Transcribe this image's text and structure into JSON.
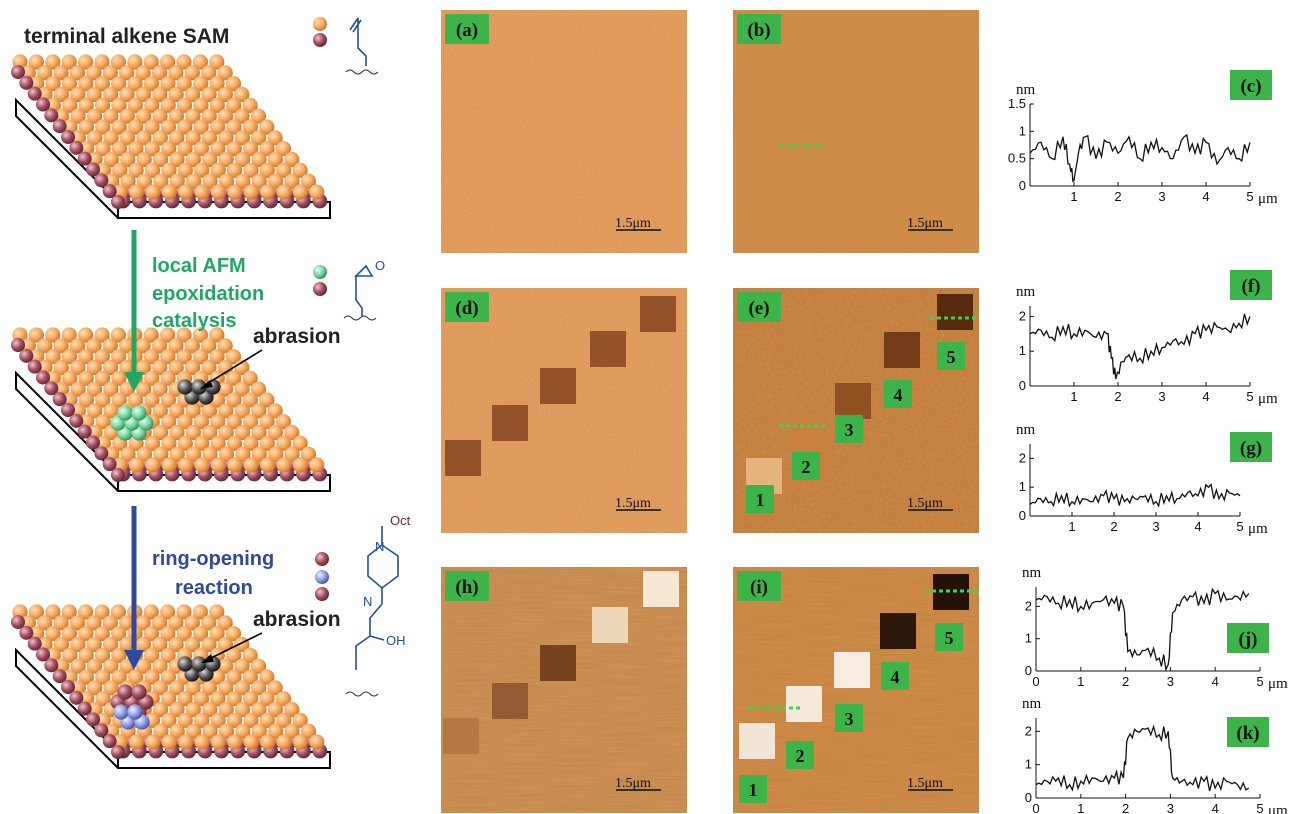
{
  "schematic": {
    "title": "terminal alkene SAM",
    "step1_label_lines": [
      "local AFM",
      "epoxidation",
      "catalysis"
    ],
    "step2_label_lines": [
      "ring-opening",
      "reaction"
    ],
    "abrasion_label": "abrasion",
    "chem_labels": {
      "oxygen": "O",
      "nitrogen": "N",
      "octyl": "Oct",
      "hydroxyl": "OH"
    },
    "colors": {
      "step1_arrow": "#1fa865",
      "step2_arrow": "#2e4aa0",
      "sphere_top": "#f7a95e",
      "sphere_edge": "#9c4a5a"
    }
  },
  "afm_images": {
    "scale_bar_text": "1.5μm",
    "panels": [
      {
        "label": "(a)"
      },
      {
        "label": "(b)"
      },
      {
        "label": "(d)"
      },
      {
        "label": "(e)",
        "markers": [
          "1",
          "2",
          "3",
          "4",
          "5"
        ]
      },
      {
        "label": "(h)"
      },
      {
        "label": "(i)",
        "markers": [
          "1",
          "2",
          "3",
          "4",
          "5"
        ]
      }
    ]
  },
  "chart_data": [
    {
      "type": "line",
      "panel": "(c)",
      "ylabel": "nm",
      "xlabel": "μm",
      "xlim": [
        0,
        5
      ],
      "ylim": [
        0,
        1.5
      ],
      "xticks": [
        "1",
        "2",
        "3",
        "4",
        "5"
      ],
      "yticks": [
        "0",
        "0.5",
        "1",
        "1.5"
      ],
      "x": [
        0,
        0.25,
        0.5,
        0.75,
        0.9,
        1.0,
        1.1,
        1.25,
        1.5,
        1.75,
        2.0,
        2.25,
        2.5,
        2.75,
        3.0,
        3.25,
        3.5,
        3.75,
        4.0,
        4.25,
        4.5,
        4.75,
        5.0
      ],
      "y": [
        0.6,
        0.8,
        0.5,
        0.9,
        0.4,
        0.1,
        0.6,
        0.9,
        0.5,
        0.8,
        0.6,
        0.9,
        0.5,
        0.8,
        0.7,
        0.5,
        0.9,
        0.6,
        0.8,
        0.4,
        0.7,
        0.5,
        0.8
      ]
    },
    {
      "type": "line",
      "panel": "(f)",
      "ylabel": "nm",
      "xlabel": "μm",
      "xlim": [
        0,
        5
      ],
      "ylim": [
        0,
        2.3
      ],
      "xticks": [
        "1",
        "2",
        "3",
        "4",
        "5"
      ],
      "yticks": [
        "0",
        "1",
        "2"
      ],
      "x": [
        0,
        0.25,
        0.5,
        0.75,
        1.0,
        1.25,
        1.5,
        1.75,
        1.85,
        1.95,
        2.1,
        2.25,
        2.5,
        2.75,
        3.0,
        3.25,
        3.5,
        3.75,
        4.0,
        4.25,
        4.5,
        4.75,
        5.0
      ],
      "y": [
        1.5,
        1.6,
        1.4,
        1.7,
        1.5,
        1.6,
        1.4,
        1.5,
        0.8,
        0.2,
        0.7,
        0.9,
        0.8,
        1.0,
        1.1,
        1.3,
        1.2,
        1.5,
        1.6,
        1.7,
        1.6,
        1.8,
        2.0
      ]
    },
    {
      "type": "line",
      "panel": "(g)",
      "ylabel": "nm",
      "xlabel": "μm",
      "xlim": [
        0,
        5
      ],
      "ylim": [
        0,
        2.5
      ],
      "xticks": [
        "1",
        "2",
        "3",
        "4",
        "5"
      ],
      "yticks": [
        "0",
        "1",
        "2"
      ],
      "x": [
        0,
        0.25,
        0.5,
        0.75,
        1.0,
        1.25,
        1.5,
        1.75,
        2.0,
        2.25,
        2.5,
        2.75,
        3.0,
        3.25,
        3.5,
        3.75,
        4.0,
        4.25,
        4.5,
        4.75,
        5.0
      ],
      "y": [
        0.4,
        0.6,
        0.5,
        0.7,
        0.5,
        0.6,
        0.5,
        0.7,
        0.6,
        0.5,
        0.6,
        0.7,
        0.5,
        0.7,
        0.6,
        0.8,
        0.7,
        1.0,
        0.6,
        0.8,
        0.7
      ]
    },
    {
      "type": "line",
      "panel": "(j)",
      "ylabel": "nm",
      "xlabel": "μm",
      "xlim": [
        0,
        5
      ],
      "ylim": [
        0,
        2.6
      ],
      "xticks": [
        "0",
        "1",
        "2",
        "3",
        "4",
        "5"
      ],
      "yticks": [
        "0",
        "1",
        "2"
      ],
      "x": [
        0,
        0.25,
        0.5,
        0.75,
        1.0,
        1.25,
        1.5,
        1.75,
        1.95,
        2.05,
        2.25,
        2.5,
        2.75,
        2.95,
        3.05,
        3.25,
        3.5,
        3.75,
        4.0,
        4.25,
        4.5,
        4.75
      ],
      "y": [
        2.2,
        2.3,
        2.1,
        2.2,
        2.0,
        2.1,
        2.2,
        2.1,
        2.0,
        0.6,
        0.5,
        0.7,
        0.4,
        0.2,
        1.8,
        2.2,
        2.3,
        2.1,
        2.4,
        2.2,
        2.3,
        2.4
      ]
    },
    {
      "type": "line",
      "panel": "(k)",
      "ylabel": "nm",
      "xlabel": "μm",
      "xlim": [
        0,
        5
      ],
      "ylim": [
        0,
        2.4
      ],
      "xticks": [
        "0",
        "1",
        "2",
        "3",
        "4",
        "5"
      ],
      "yticks": [
        "0",
        "1",
        "2"
      ],
      "x": [
        0,
        0.25,
        0.5,
        0.75,
        1.0,
        1.25,
        1.5,
        1.75,
        1.95,
        2.05,
        2.25,
        2.5,
        2.75,
        2.95,
        3.05,
        3.25,
        3.5,
        3.75,
        4.0,
        4.25,
        4.5,
        4.75
      ],
      "y": [
        0.4,
        0.5,
        0.6,
        0.4,
        0.5,
        0.6,
        0.5,
        0.6,
        0.6,
        1.8,
        2.0,
        2.1,
        1.9,
        2.0,
        0.6,
        0.5,
        0.4,
        0.5,
        0.3,
        0.5,
        0.4,
        0.3
      ]
    }
  ]
}
